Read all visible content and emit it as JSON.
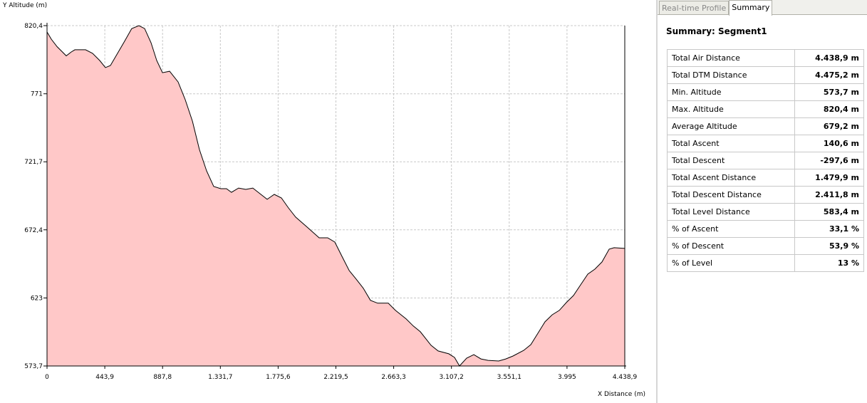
{
  "chart_data": {
    "type": "area",
    "y_label": "Y Altitude (m)",
    "x_label": "X Distance (m)",
    "color": "#ffc8c8",
    "line_color": "#000000",
    "grid": true,
    "xlim": [
      0,
      4438.9
    ],
    "ylim": [
      573.7,
      820.4
    ],
    "xticks": [
      0,
      {
        "value": 443.9,
        "label": "443,9"
      },
      {
        "value": 887.8,
        "label": "887,8"
      },
      {
        "value": 1331.7,
        "label": "1.331,7"
      },
      {
        "value": 1775.6,
        "label": "1.775,6"
      },
      {
        "value": 2219.5,
        "label": "2.219,5"
      },
      {
        "value": 2663.3,
        "label": "2.663,3"
      },
      {
        "value": 3107.2,
        "label": "3.107,2"
      },
      {
        "value": 3551.1,
        "label": "3.551,1"
      },
      {
        "value": 3995,
        "label": "3.995"
      },
      {
        "value": 4438.9,
        "label": "4.438,9"
      }
    ],
    "yticks": [
      {
        "value": 573.7,
        "label": "573,7"
      },
      623,
      {
        "value": 672.4,
        "label": "672,4"
      },
      {
        "value": 721.7,
        "label": "721,7"
      },
      771,
      {
        "value": 820.4,
        "label": "820,4"
      }
    ],
    "x": [
      0,
      33,
      77,
      115,
      148,
      186,
      214,
      296,
      350,
      405,
      449,
      487,
      542,
      596,
      651,
      706,
      750,
      799,
      843,
      887,
      942,
      1007,
      1062,
      1117,
      1171,
      1226,
      1281,
      1335,
      1379,
      1417,
      1472,
      1527,
      1581,
      1636,
      1691,
      1746,
      1801,
      1855,
      1910,
      1992,
      2091,
      2156,
      2211,
      2266,
      2321,
      2375,
      2430,
      2485,
      2540,
      2622,
      2677,
      2759,
      2814,
      2868,
      2950,
      3005,
      3087,
      3131,
      3169,
      3224,
      3279,
      3334,
      3388,
      3470,
      3525,
      3580,
      3662,
      3717,
      3771,
      3826,
      3881,
      3936,
      3990,
      4045,
      4100,
      4155,
      4209,
      4264,
      4319,
      4357,
      4438.9
    ],
    "y": [
      815.8,
      810.6,
      805.2,
      801.6,
      798.5,
      801.3,
      802.9,
      802.9,
      800.3,
      795.1,
      790.0,
      791.5,
      800.3,
      809.1,
      818.3,
      820.4,
      818.3,
      808.0,
      795.1,
      786.3,
      787.3,
      779.6,
      766.7,
      751.2,
      730.6,
      715.1,
      703.8,
      702.2,
      702.2,
      699.6,
      702.7,
      701.7,
      702.7,
      698.6,
      694.5,
      698.1,
      695.5,
      688.3,
      681.6,
      674.9,
      666.6,
      666.6,
      663.5,
      653.2,
      642.9,
      636.7,
      630.0,
      621.3,
      619.2,
      619.2,
      614.0,
      607.8,
      602.7,
      598.5,
      588.7,
      584.6,
      582.5,
      579.9,
      573.7,
      579.4,
      581.9,
      578.8,
      577.8,
      577.3,
      578.8,
      580.9,
      585.0,
      589.2,
      597.4,
      605.7,
      610.8,
      614.0,
      619.7,
      624.8,
      632.6,
      640.3,
      643.9,
      649.1,
      658.4,
      659.4,
      658.9
    ]
  },
  "tabs": [
    "Real-time Profile",
    "Summary"
  ],
  "summary": {
    "title": "Summary: Segment1",
    "rows": [
      [
        "Total Air Distance",
        "4.438,9 m"
      ],
      [
        "Total DTM Distance",
        "4.475,2 m"
      ],
      [
        "Min. Altitude",
        "573,7 m"
      ],
      [
        "Max. Altitude",
        "820,4 m"
      ],
      [
        "Average Altitude",
        "679,2 m"
      ],
      [
        "Total Ascent",
        "140,6 m"
      ],
      [
        "Total Descent",
        "-297,6 m"
      ],
      [
        "Total Ascent Distance",
        "1.479,9 m"
      ],
      [
        "Total Descent Distance",
        "2.411,8 m"
      ],
      [
        "Total Level Distance",
        "583,4 m"
      ],
      [
        "% of Ascent",
        "33,1 %"
      ],
      [
        "% of Descent",
        "53,9 %"
      ],
      [
        "% of Level",
        "13 %"
      ]
    ]
  }
}
